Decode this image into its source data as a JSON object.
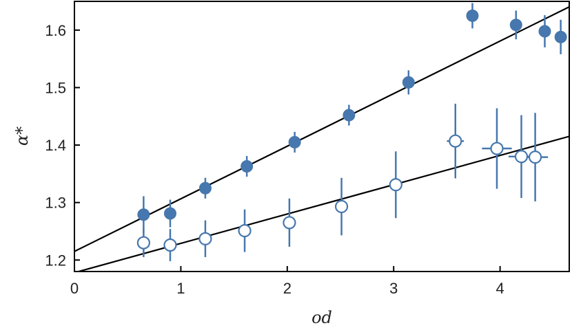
{
  "chart_data": {
    "type": "scatter",
    "xlabel": "od",
    "ylabel": "α*",
    "xlim": [
      0,
      4.65
    ],
    "ylim": [
      1.18,
      1.65
    ],
    "xticks": [
      0,
      1,
      2,
      3,
      4
    ],
    "yticks": [
      1.2,
      1.3,
      1.4,
      1.5,
      1.6
    ],
    "grid": false,
    "legend": "none",
    "marker_color": "#4677ae",
    "line_color": "#000000",
    "series": [
      {
        "marker": "filled-circle",
        "points": [
          {
            "x": 0.65,
            "y": 1.279,
            "yerr": 0.032,
            "xerr": 0
          },
          {
            "x": 0.9,
            "y": 1.281,
            "yerr": 0.024,
            "xerr": 0
          },
          {
            "x": 1.23,
            "y": 1.325,
            "yerr": 0.018,
            "xerr": 0
          },
          {
            "x": 1.62,
            "y": 1.363,
            "yerr": 0.018,
            "xerr": 0
          },
          {
            "x": 2.07,
            "y": 1.405,
            "yerr": 0.018,
            "xerr": 0
          },
          {
            "x": 2.58,
            "y": 1.452,
            "yerr": 0.018,
            "xerr": 0
          },
          {
            "x": 3.14,
            "y": 1.509,
            "yerr": 0.021,
            "xerr": 0
          },
          {
            "x": 3.74,
            "y": 1.625,
            "yerr": 0.022,
            "xerr": 0
          },
          {
            "x": 4.15,
            "y": 1.609,
            "yerr": 0.025,
            "xerr": 0
          },
          {
            "x": 4.42,
            "y": 1.598,
            "yerr": 0.028,
            "xerr": 0
          },
          {
            "x": 4.57,
            "y": 1.588,
            "yerr": 0.03,
            "xerr": 0
          }
        ],
        "fit": {
          "intercept": 1.215,
          "slope": 0.0915
        }
      },
      {
        "marker": "open-circle",
        "points": [
          {
            "x": 0.65,
            "y": 1.23,
            "yerr": 0.025,
            "xerr": 0
          },
          {
            "x": 0.9,
            "y": 1.226,
            "yerr": 0.028,
            "xerr": 0
          },
          {
            "x": 1.23,
            "y": 1.237,
            "yerr": 0.032,
            "xerr": 0
          },
          {
            "x": 1.6,
            "y": 1.251,
            "yerr": 0.037,
            "xerr": 0
          },
          {
            "x": 2.02,
            "y": 1.265,
            "yerr": 0.042,
            "xerr": 0
          },
          {
            "x": 2.51,
            "y": 1.293,
            "yerr": 0.05,
            "xerr": 0
          },
          {
            "x": 3.02,
            "y": 1.331,
            "yerr": 0.058,
            "xerr": 0
          },
          {
            "x": 3.58,
            "y": 1.407,
            "yerr": 0.065,
            "xerr": 0.08
          },
          {
            "x": 3.97,
            "y": 1.394,
            "yerr": 0.07,
            "xerr": 0.14
          },
          {
            "x": 4.2,
            "y": 1.38,
            "yerr": 0.072,
            "xerr": 0.12
          },
          {
            "x": 4.33,
            "y": 1.379,
            "yerr": 0.077,
            "xerr": 0.12
          }
        ],
        "fit": {
          "intercept": 1.178,
          "slope": 0.051
        }
      }
    ]
  }
}
